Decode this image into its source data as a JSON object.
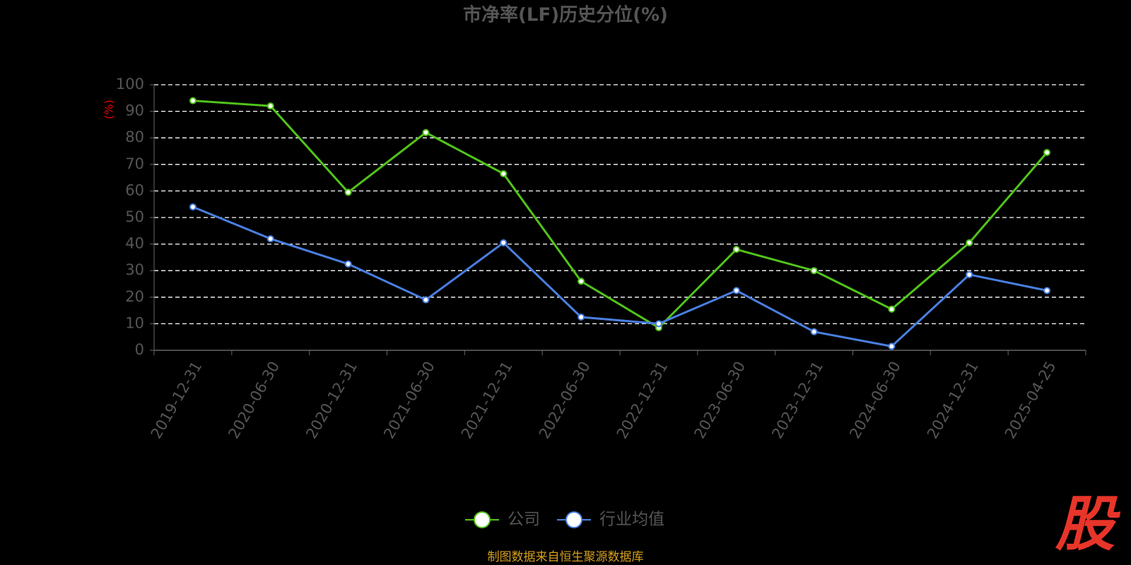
{
  "chart_data": {
    "type": "line",
    "title": "市净率(LF)历史分位(%)",
    "y_label": "(%)",
    "categories": [
      "2019-12-31",
      "2020-06-30",
      "2020-12-31",
      "2021-06-30",
      "2021-12-31",
      "2022-06-30",
      "2022-12-31",
      "2023-06-30",
      "2023-12-31",
      "2024-06-30",
      "2024-12-31",
      "2025-04-25"
    ],
    "series": [
      {
        "name": "公司",
        "color": "#52c41a",
        "values": [
          94,
          92,
          59.5,
          82,
          66.5,
          26,
          8.5,
          38,
          30,
          15.5,
          40.5,
          74.5
        ]
      },
      {
        "name": "行业均值",
        "color": "#4a7fe0",
        "values": [
          54,
          42,
          32.5,
          19,
          40.5,
          12.5,
          10,
          22.5,
          7,
          1.5,
          28.5,
          22.5
        ]
      }
    ],
    "ylim": [
      0,
      100
    ],
    "yticks": [
      0,
      10,
      20,
      30,
      40,
      50,
      60,
      70,
      80,
      90,
      100
    ],
    "grid": true,
    "legend": "bottom",
    "source": "制图数据来自恒生聚源数据库",
    "logo": "股"
  }
}
